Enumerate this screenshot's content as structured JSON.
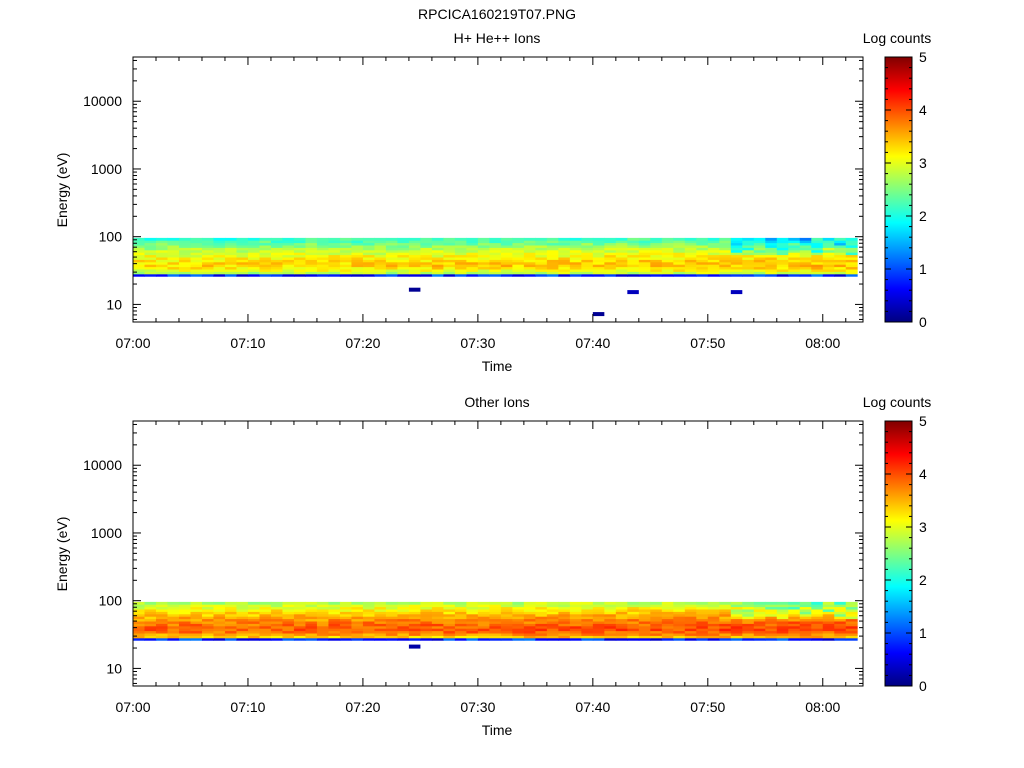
{
  "page_title": "RPCICA160219T07.PNG",
  "chart_data": [
    {
      "type": "heatmap",
      "title": "H+ He++ Ions",
      "xlabel": "Time",
      "ylabel": "Energy (eV)",
      "y_scale": "log",
      "x_ticks": [
        "07:00",
        "07:10",
        "07:20",
        "07:30",
        "07:40",
        "07:50",
        "08:00"
      ],
      "x_range_minutes": [
        0,
        63.5
      ],
      "y_ticks": [
        "10",
        "100",
        "1000",
        "10000"
      ],
      "y_range": [
        5.5,
        45000
      ],
      "colorbar": {
        "label": "Log counts",
        "range": [
          0,
          5
        ],
        "ticks": [
          "0",
          "1",
          "2",
          "3",
          "4",
          "5"
        ]
      },
      "energy_band_eV": [
        26,
        96
      ],
      "peak_energy_eV": 38,
      "peak_log_counts": 3.3,
      "isolated_low_energy_counts": [
        {
          "time": "07:24",
          "energy_eV": 16.5,
          "log_counts": 0.1
        },
        {
          "time": "07:40",
          "energy_eV": 7.2,
          "log_counts": 0.1
        },
        {
          "time": "07:43",
          "energy_eV": 15.2,
          "log_counts": 0.3
        },
        {
          "time": "07:52",
          "energy_eV": 15.2,
          "log_counts": 0.3
        }
      ],
      "grid": false
    },
    {
      "type": "heatmap",
      "title": "Other Ions",
      "xlabel": "Time",
      "ylabel": "Energy (eV)",
      "y_scale": "log",
      "x_ticks": [
        "07:00",
        "07:10",
        "07:20",
        "07:30",
        "07:40",
        "07:50",
        "08:00"
      ],
      "x_range_minutes": [
        0,
        63.5
      ],
      "y_ticks": [
        "10",
        "100",
        "1000",
        "10000"
      ],
      "y_range": [
        5.5,
        45000
      ],
      "colorbar": {
        "label": "Log counts",
        "range": [
          0,
          5
        ],
        "ticks": [
          "0",
          "1",
          "2",
          "3",
          "4",
          "5"
        ]
      },
      "energy_band_eV": [
        26,
        96
      ],
      "peak_energy_eV": 38,
      "peak_log_counts": 3.9,
      "isolated_low_energy_counts": [
        {
          "time": "07:24",
          "energy_eV": 21,
          "log_counts": 0.2
        }
      ],
      "grid": false
    }
  ]
}
